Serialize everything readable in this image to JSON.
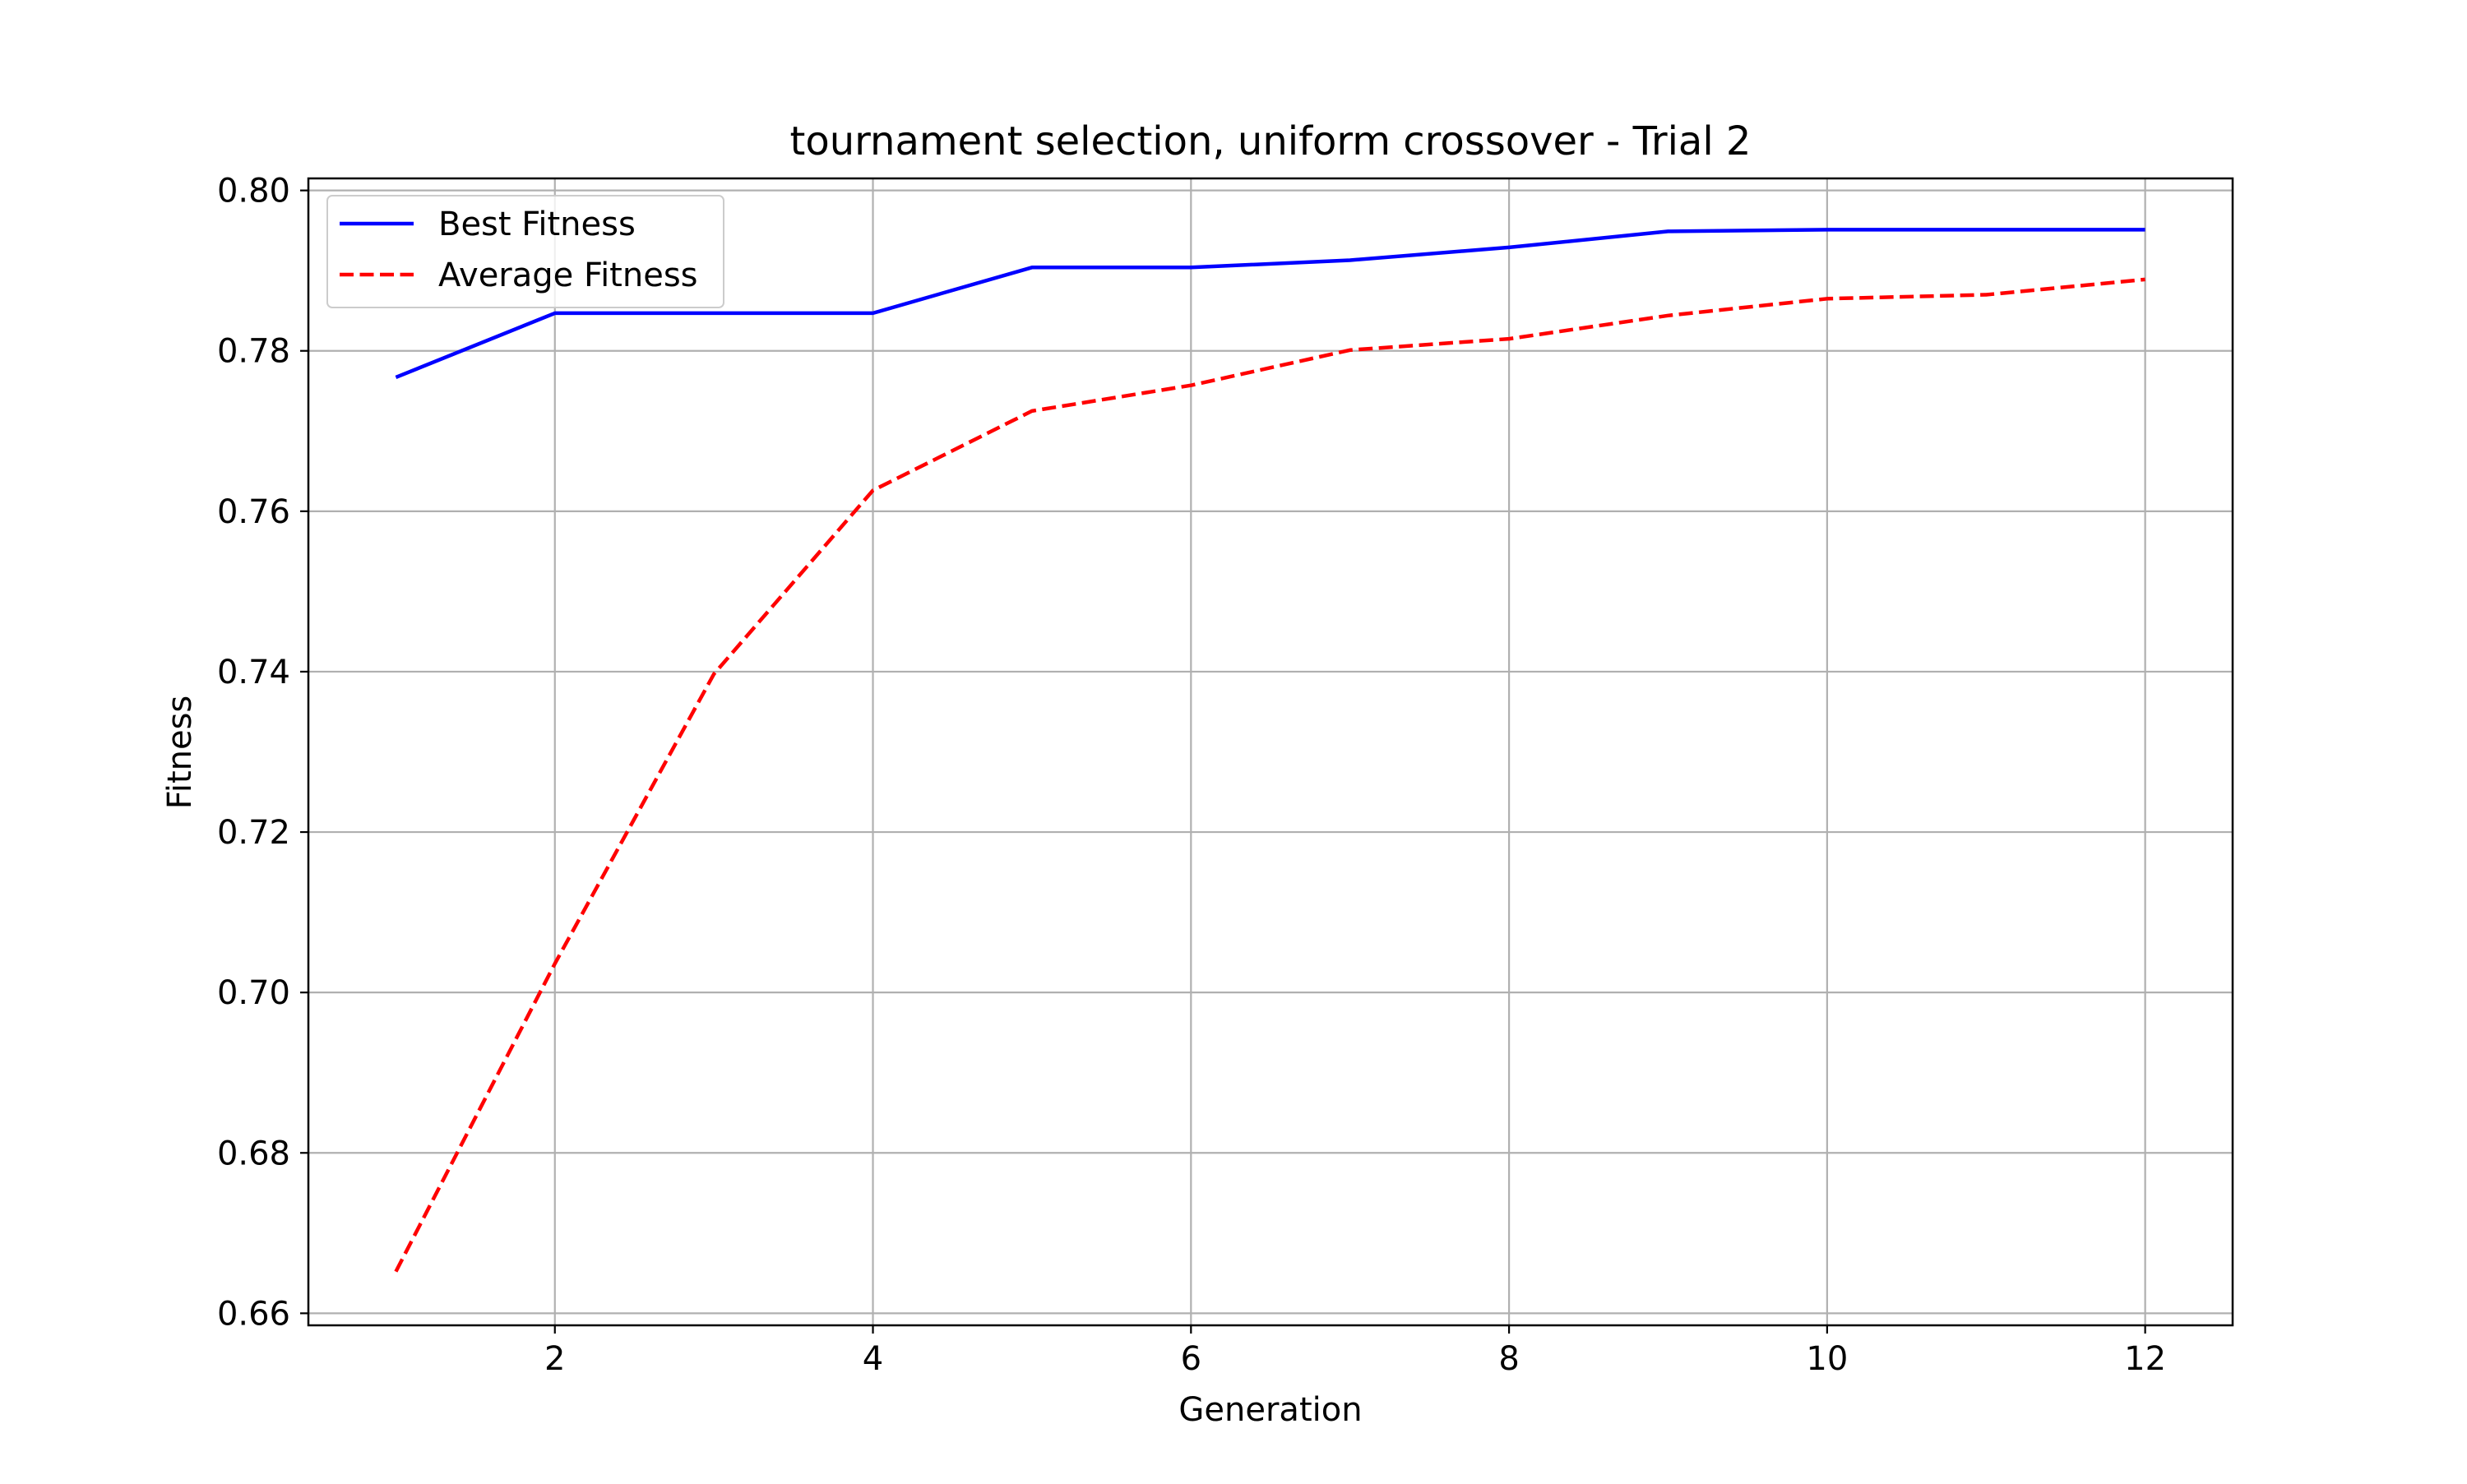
{
  "chart_data": {
    "type": "line",
    "title": "tournament selection, uniform crossover - Trial 2",
    "xlabel": "Generation",
    "ylabel": "Fitness",
    "x": [
      1,
      2,
      3,
      4,
      5,
      6,
      7,
      8,
      9,
      10,
      11,
      12
    ],
    "xlim": [
      0.45,
      12.55
    ],
    "ylim": [
      0.6585,
      0.8015
    ],
    "xticks": [
      2,
      4,
      6,
      8,
      10,
      12
    ],
    "yticks": [
      0.66,
      0.68,
      0.7,
      0.72,
      0.74,
      0.76,
      0.78,
      0.8
    ],
    "xtick_labels": [
      "2",
      "4",
      "6",
      "8",
      "10",
      "12"
    ],
    "ytick_labels": [
      "0.66",
      "0.68",
      "0.70",
      "0.72",
      "0.74",
      "0.76",
      "0.78",
      "0.80"
    ],
    "grid": true,
    "legend_position": "top-left",
    "series": [
      {
        "name": "Best Fitness",
        "color": "#0000ff",
        "style": "solid",
        "values": [
          0.7767,
          0.7847,
          0.7847,
          0.7847,
          0.7904,
          0.7904,
          0.7913,
          0.7929,
          0.7949,
          0.7951,
          0.7951,
          0.7951
        ]
      },
      {
        "name": "Average Fitness",
        "color": "#ff0000",
        "style": "dashed",
        "values": [
          0.6652,
          0.7036,
          0.7397,
          0.7626,
          0.7725,
          0.7757,
          0.7801,
          0.7815,
          0.7844,
          0.7865,
          0.787,
          0.7889
        ]
      }
    ]
  }
}
